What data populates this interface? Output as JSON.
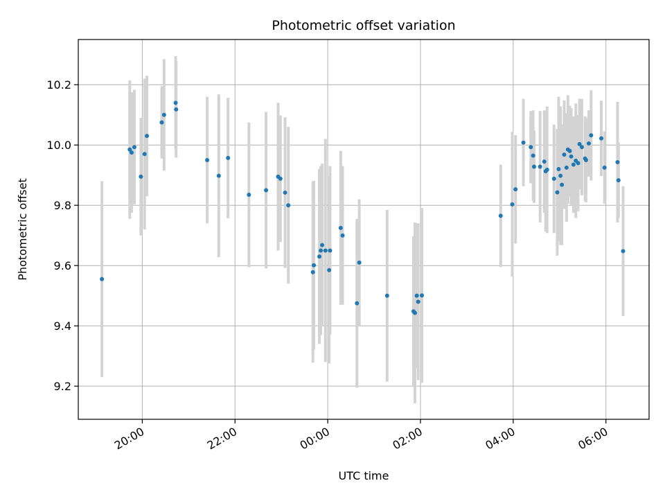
{
  "chart_data": {
    "type": "scatter",
    "title": "Photometric offset variation",
    "xlabel": "UTC time",
    "ylabel": "Photometric offset",
    "x_unit": "hours",
    "x_tick_values": [
      20,
      22,
      24,
      26,
      28,
      30
    ],
    "x_tick_labels": [
      "20:00",
      "22:00",
      "00:00",
      "02:00",
      "04:00",
      "06:00"
    ],
    "y_ticks": [
      9.2,
      9.4,
      9.6,
      9.8,
      10.0,
      10.2
    ],
    "xlim": [
      18.62,
      30.93
    ],
    "ylim": [
      9.09,
      10.35
    ],
    "grid": true,
    "colors": {
      "point": "#1f77b4",
      "errorbar": "#d3d3d3",
      "grid": "#b0b0b0"
    },
    "series": [
      {
        "x": [
          19.13,
          19.73,
          19.77,
          19.83,
          19.97,
          20.05,
          20.1,
          20.42,
          20.47,
          20.72,
          20.73,
          21.4,
          21.65,
          21.85,
          22.3,
          22.67,
          22.93,
          22.98,
          23.08,
          23.15,
          23.68,
          23.7,
          23.82,
          23.85,
          23.88,
          23.95,
          24.03,
          24.05,
          24.28,
          24.32,
          24.63,
          24.68,
          25.28,
          25.85,
          25.88,
          25.92,
          25.95,
          26.03,
          27.73,
          27.98,
          28.05,
          28.22,
          28.38,
          28.43,
          28.45,
          28.58,
          28.67,
          28.7,
          28.73,
          28.88,
          28.95,
          28.98,
          29.02,
          29.05,
          29.1,
          29.15,
          29.18,
          29.22,
          29.25,
          29.3,
          29.35,
          29.4,
          29.43,
          29.48,
          29.55,
          29.57,
          29.63,
          29.68,
          29.9,
          29.97,
          30.25,
          30.27,
          30.37
        ],
        "y": [
          9.555,
          9.985,
          9.975,
          9.993,
          9.895,
          9.97,
          10.03,
          10.075,
          10.1,
          10.14,
          10.118,
          9.95,
          9.898,
          9.957,
          9.835,
          9.85,
          9.895,
          9.888,
          9.842,
          9.8,
          9.578,
          9.601,
          9.63,
          9.65,
          9.668,
          9.65,
          9.585,
          9.65,
          9.725,
          9.7,
          9.475,
          9.61,
          9.5,
          9.448,
          9.443,
          9.5,
          9.48,
          9.501,
          9.765,
          9.803,
          9.853,
          10.008,
          9.993,
          9.965,
          9.928,
          9.928,
          9.945,
          9.913,
          9.918,
          9.888,
          9.843,
          9.92,
          9.898,
          9.868,
          9.968,
          9.925,
          9.985,
          9.98,
          9.962,
          9.935,
          9.948,
          9.94,
          10.003,
          9.993,
          9.955,
          9.95,
          10.005,
          10.032,
          10.022,
          9.925,
          9.943,
          9.883,
          9.648
        ],
        "err": [
          0.325,
          0.23,
          0.2,
          0.19,
          0.195,
          0.25,
          0.2,
          0.12,
          0.185,
          0.155,
          0.16,
          0.21,
          0.27,
          0.2,
          0.24,
          0.26,
          0.245,
          0.21,
          0.25,
          0.26,
          0.3,
          0.28,
          0.29,
          0.28,
          0.27,
          0.37,
          0.31,
          0.28,
          0.255,
          0.23,
          0.28,
          0.21,
          0.285,
          0.25,
          0.3,
          0.24,
          0.26,
          0.29,
          0.17,
          0.24,
          0.18,
          0.145,
          0.12,
          0.15,
          0.12,
          0.185,
          0.17,
          0.2,
          0.21,
          0.18,
          0.21,
          0.24,
          0.23,
          0.2,
          0.18,
          0.18,
          0.18,
          0.15,
          0.16,
          0.16,
          0.19,
          0.16,
          0.15,
          0.16,
          0.14,
          0.14,
          0.11,
          0.15,
          0.125,
          0.12,
          0.2,
          0.125,
          0.215
        ]
      }
    ]
  }
}
